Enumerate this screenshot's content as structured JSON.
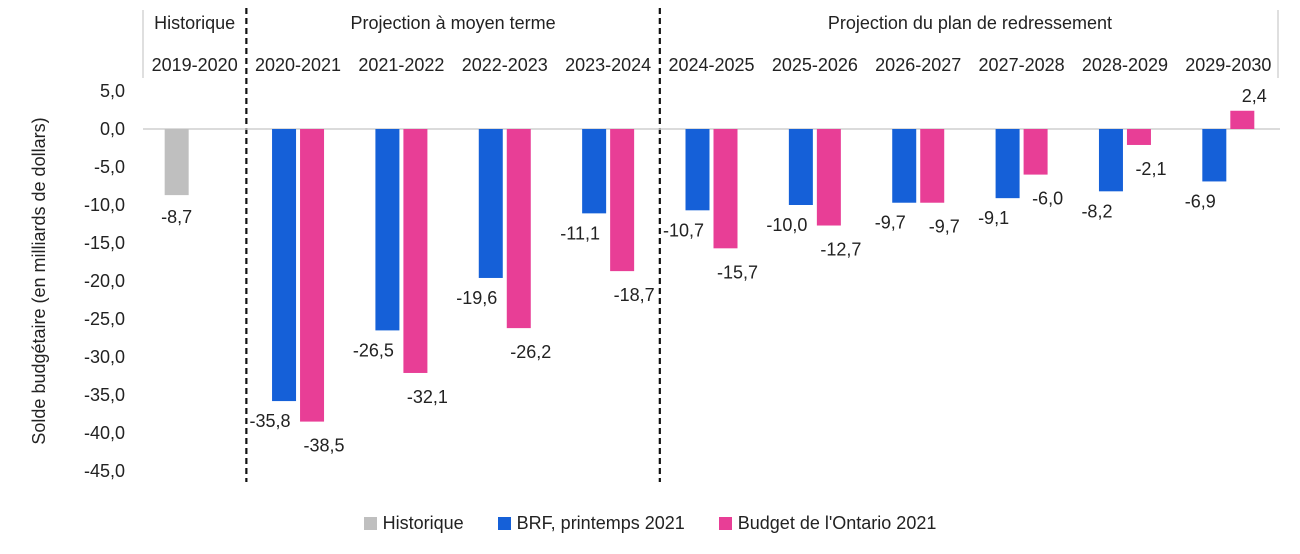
{
  "chart_data": {
    "type": "bar",
    "ylabel": "Solde budgétaire (en milliards de dollars)",
    "ylim": [
      -45,
      5
    ],
    "yticks": [
      "5,0",
      "0,0",
      "-5,0",
      "-10,0",
      "-15,0",
      "-20,0",
      "-25,0",
      "-30,0",
      "-35,0",
      "-40,0",
      "-45,0"
    ],
    "ytick_values": [
      5,
      0,
      -5,
      -10,
      -15,
      -20,
      -25,
      -30,
      -35,
      -40,
      -45
    ],
    "categories": [
      "2019-2020",
      "2020-2021",
      "2021-2022",
      "2022-2023",
      "2023-2024",
      "2024-2025",
      "2025-2026",
      "2026-2027",
      "2027-2028",
      "2028-2029",
      "2029-2030"
    ],
    "sections": [
      {
        "label": "Historique",
        "count": 1
      },
      {
        "label": "Projection à moyen terme",
        "count": 4
      },
      {
        "label": "Projection du plan de redressement",
        "count": 6
      }
    ],
    "series": [
      {
        "name": "Historique",
        "color": "#bfbfbf",
        "values": [
          -8.7,
          null,
          null,
          null,
          null,
          null,
          null,
          null,
          null,
          null,
          null
        ],
        "labels": [
          "-8,7",
          null,
          null,
          null,
          null,
          null,
          null,
          null,
          null,
          null,
          null
        ]
      },
      {
        "name": "BRF, printemps 2021",
        "color": "#1560d8",
        "values": [
          null,
          -35.8,
          -26.5,
          -19.6,
          -11.1,
          -10.7,
          -10.0,
          -9.7,
          -9.1,
          -8.2,
          -6.9
        ],
        "labels": [
          null,
          "-35,8",
          "-26,5",
          "-19,6",
          "-11,1",
          "-10,7",
          "-10,0",
          "-9,7",
          "-9,1",
          "-8,2",
          "-6,9"
        ]
      },
      {
        "name": "Budget de l'Ontario 2021",
        "color": "#e83e96",
        "values": [
          null,
          -38.5,
          -32.1,
          -26.2,
          -18.7,
          -15.7,
          -12.7,
          -9.7,
          -6.0,
          -2.1,
          2.4
        ],
        "labels": [
          null,
          "-38,5",
          "-32,1",
          "-26,2",
          "-18,7",
          "-15,7",
          "-12,7",
          "-9,7",
          "-6,0",
          "-2,1",
          "2,4"
        ]
      }
    ],
    "grid": false,
    "legend_position": "bottom"
  }
}
